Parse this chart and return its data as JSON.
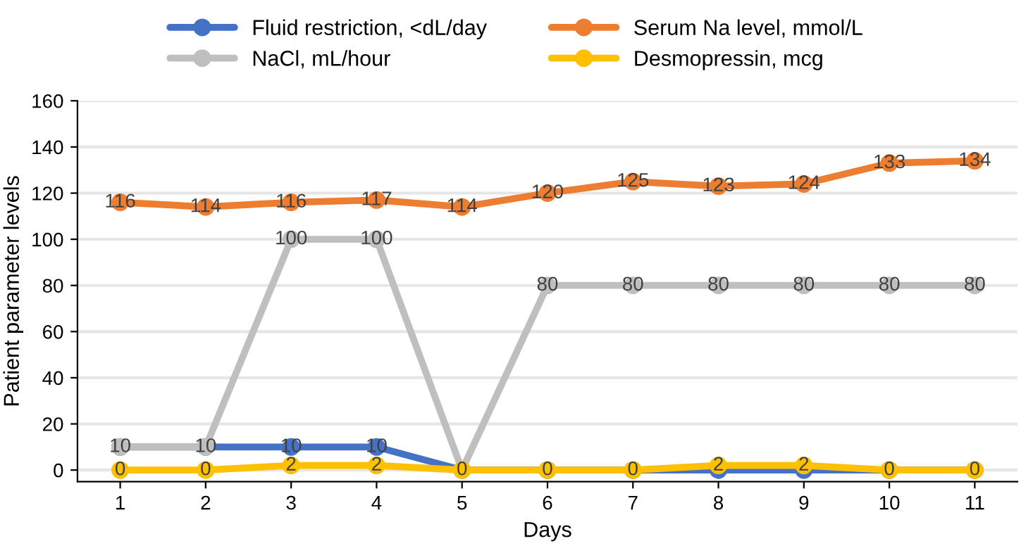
{
  "chart_data": {
    "type": "line",
    "xlabel": "Days",
    "ylabel": "Patient parameter levels",
    "categories": [
      "1",
      "2",
      "3",
      "4",
      "5",
      "6",
      "7",
      "8",
      "9",
      "10",
      "11"
    ],
    "series": [
      {
        "name": "Fluid restriction, <dL/day",
        "color": "#4472c4",
        "values": [
          10,
          10,
          10,
          10,
          0,
          0,
          0,
          0,
          0,
          0,
          0
        ],
        "value_labels": [
          "10",
          "10",
          "10",
          "10",
          null,
          null,
          null,
          null,
          null,
          null,
          null
        ]
      },
      {
        "name": "NaCl, mL/hour",
        "color": "#bfbfbf",
        "values": [
          10,
          10,
          100,
          100,
          0,
          80,
          80,
          80,
          80,
          80,
          80
        ],
        "value_labels": [
          null,
          null,
          "100",
          "100",
          null,
          "80",
          "80",
          "80",
          "80",
          "80",
          "80"
        ]
      },
      {
        "name": "Serum Na level, mmol/L",
        "color": "#ed7d31",
        "values": [
          116,
          114,
          116,
          117,
          114,
          120,
          125,
          123,
          124,
          133,
          134
        ],
        "value_labels": [
          "116",
          "114",
          "116",
          "117",
          "114",
          "120",
          "125",
          "123",
          "124",
          "133",
          "134"
        ]
      },
      {
        "name": "Desmopressin, mcg",
        "color": "#ffc000",
        "values": [
          0,
          0,
          2,
          2,
          0,
          0,
          0,
          2,
          2,
          0,
          0
        ],
        "value_labels": [
          "0",
          "0",
          "2",
          "2",
          "0",
          "0",
          "0",
          "2",
          "2",
          "0",
          "0"
        ]
      }
    ],
    "ylim": [
      -5,
      160
    ],
    "yticks": [
      0,
      20,
      40,
      60,
      80,
      100,
      120,
      140,
      160
    ],
    "grid": "y",
    "legend": "top",
    "marker": "circle",
    "line_style": "solid"
  }
}
